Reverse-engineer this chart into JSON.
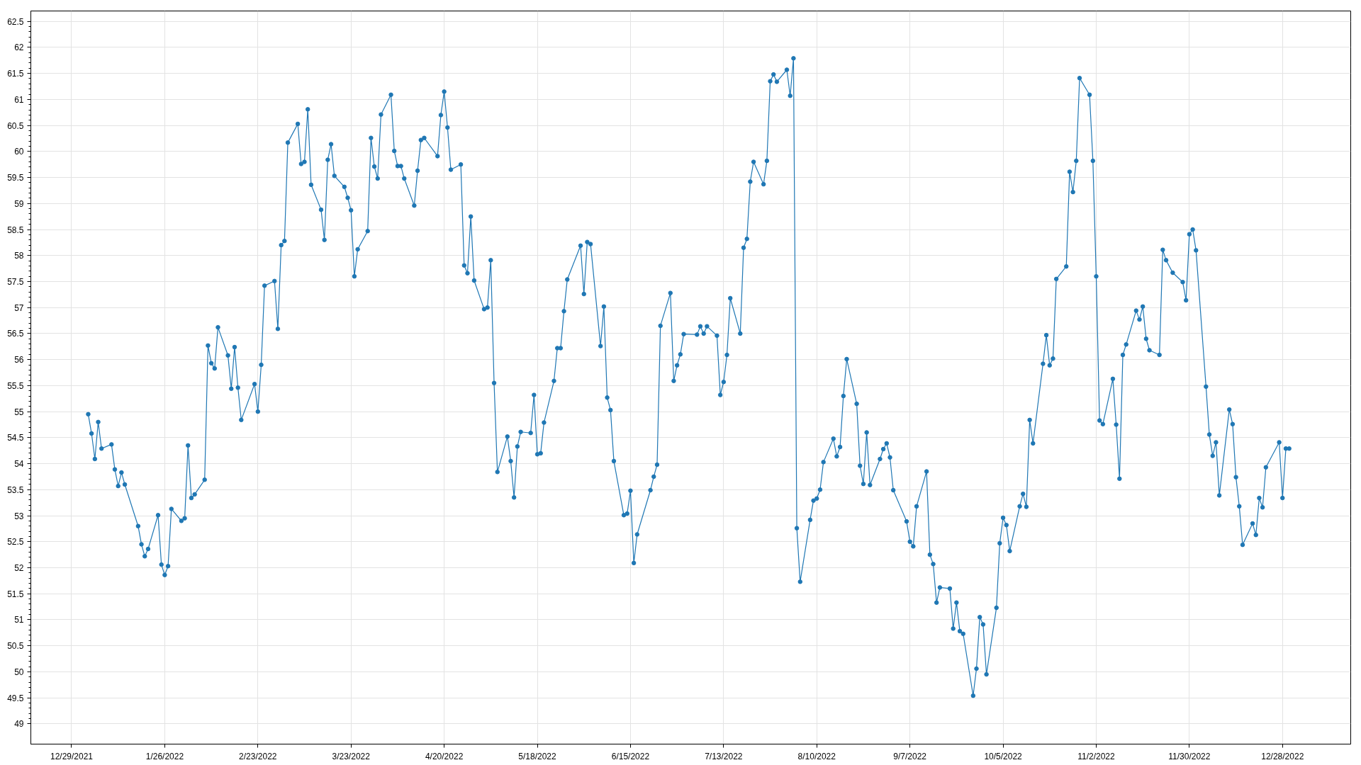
{
  "chart_data": {
    "type": "line",
    "marker": "circle",
    "line_style": "solid",
    "grid": true,
    "xlim": [
      "2021-12-16T18:00",
      "2023-01-17T12:00"
    ],
    "xticks": [
      {
        "value": "2021-12-29",
        "label": "12/29/2021"
      },
      {
        "value": "2022-01-26",
        "label": "1/26/2022"
      },
      {
        "value": "2022-02-23",
        "label": "2/23/2022"
      },
      {
        "value": "2022-03-23",
        "label": "3/23/2022"
      },
      {
        "value": "2022-04-20",
        "label": "4/20/2022"
      },
      {
        "value": "2022-05-18",
        "label": "5/18/2022"
      },
      {
        "value": "2022-06-15",
        "label": "6/15/2022"
      },
      {
        "value": "2022-07-13",
        "label": "7/13/2022"
      },
      {
        "value": "2022-08-10",
        "label": "8/10/2022"
      },
      {
        "value": "2022-09-07",
        "label": "9/7/2022"
      },
      {
        "value": "2022-10-05",
        "label": "10/5/2022"
      },
      {
        "value": "2022-11-02",
        "label": "11/2/2022"
      },
      {
        "value": "2022-11-30",
        "label": "11/30/2022"
      },
      {
        "value": "2022-12-28",
        "label": "12/28/2022"
      }
    ],
    "ylim": [
      48.61,
      62.7
    ],
    "yticks": [
      49,
      49.5,
      50,
      50.5,
      51,
      51.5,
      52,
      52.5,
      53,
      53.5,
      54,
      54.5,
      55,
      55.5,
      56,
      56.5,
      57,
      57.5,
      58,
      58.5,
      59,
      59.5,
      60,
      60.5,
      61,
      61.5,
      62,
      62.5
    ],
    "x": [
      "2022-01-03",
      "2022-01-04",
      "2022-01-05",
      "2022-01-06",
      "2022-01-07",
      "2022-01-10",
      "2022-01-11",
      "2022-01-12",
      "2022-01-13",
      "2022-01-14",
      "2022-01-18",
      "2022-01-19",
      "2022-01-20",
      "2022-01-21",
      "2022-01-24",
      "2022-01-25",
      "2022-01-26",
      "2022-01-27",
      "2022-01-28",
      "2022-01-31",
      "2022-02-01",
      "2022-02-02",
      "2022-02-03",
      "2022-02-04",
      "2022-02-07",
      "2022-02-08",
      "2022-02-09",
      "2022-02-10",
      "2022-02-11",
      "2022-02-14",
      "2022-02-15",
      "2022-02-16",
      "2022-02-17",
      "2022-02-18",
      "2022-02-22",
      "2022-02-23",
      "2022-02-24",
      "2022-02-25",
      "2022-02-28",
      "2022-03-01",
      "2022-03-02",
      "2022-03-03",
      "2022-03-04",
      "2022-03-07",
      "2022-03-08",
      "2022-03-09",
      "2022-03-10",
      "2022-03-11",
      "2022-03-14",
      "2022-03-15",
      "2022-03-16",
      "2022-03-17",
      "2022-03-18",
      "2022-03-21",
      "2022-03-22",
      "2022-03-23",
      "2022-03-24",
      "2022-03-25",
      "2022-03-28",
      "2022-03-29",
      "2022-03-30",
      "2022-03-31",
      "2022-04-01",
      "2022-04-04",
      "2022-04-05",
      "2022-04-06",
      "2022-04-07",
      "2022-04-08",
      "2022-04-11",
      "2022-04-12",
      "2022-04-13",
      "2022-04-14",
      "2022-04-18",
      "2022-04-19",
      "2022-04-20",
      "2022-04-21",
      "2022-04-22",
      "2022-04-25",
      "2022-04-26",
      "2022-04-27",
      "2022-04-28",
      "2022-04-29",
      "2022-05-02",
      "2022-05-03",
      "2022-05-04",
      "2022-05-05",
      "2022-05-06",
      "2022-05-09",
      "2022-05-10",
      "2022-05-11",
      "2022-05-12",
      "2022-05-13",
      "2022-05-16",
      "2022-05-17",
      "2022-05-18",
      "2022-05-19",
      "2022-05-20",
      "2022-05-23",
      "2022-05-24",
      "2022-05-25",
      "2022-05-26",
      "2022-05-27",
      "2022-05-31",
      "2022-06-01",
      "2022-06-02",
      "2022-06-03",
      "2022-06-06",
      "2022-06-07",
      "2022-06-08",
      "2022-06-09",
      "2022-06-10",
      "2022-06-13",
      "2022-06-14",
      "2022-06-15",
      "2022-06-16",
      "2022-06-17",
      "2022-06-21",
      "2022-06-22",
      "2022-06-23",
      "2022-06-24",
      "2022-06-27",
      "2022-06-28",
      "2022-06-29",
      "2022-06-30",
      "2022-07-01",
      "2022-07-05",
      "2022-07-06",
      "2022-07-07",
      "2022-07-08",
      "2022-07-11",
      "2022-07-12",
      "2022-07-13",
      "2022-07-14",
      "2022-07-15",
      "2022-07-18",
      "2022-07-19",
      "2022-07-20",
      "2022-07-21",
      "2022-07-22",
      "2022-07-25",
      "2022-07-26",
      "2022-07-27",
      "2022-07-28",
      "2022-07-29",
      "2022-08-01",
      "2022-08-02",
      "2022-08-03",
      "2022-08-04",
      "2022-08-05",
      "2022-08-08",
      "2022-08-09",
      "2022-08-10",
      "2022-08-11",
      "2022-08-12",
      "2022-08-15",
      "2022-08-16",
      "2022-08-17",
      "2022-08-18",
      "2022-08-19",
      "2022-08-22",
      "2022-08-23",
      "2022-08-24",
      "2022-08-25",
      "2022-08-26",
      "2022-08-29",
      "2022-08-30",
      "2022-08-31",
      "2022-09-01",
      "2022-09-02",
      "2022-09-06",
      "2022-09-07",
      "2022-09-08",
      "2022-09-09",
      "2022-09-12",
      "2022-09-13",
      "2022-09-14",
      "2022-09-15",
      "2022-09-16",
      "2022-09-19",
      "2022-09-20",
      "2022-09-21",
      "2022-09-22",
      "2022-09-23",
      "2022-09-26",
      "2022-09-27",
      "2022-09-28",
      "2022-09-29",
      "2022-09-30",
      "2022-10-03",
      "2022-10-04",
      "2022-10-05",
      "2022-10-06",
      "2022-10-07",
      "2022-10-10",
      "2022-10-11",
      "2022-10-12",
      "2022-10-13",
      "2022-10-14",
      "2022-10-17",
      "2022-10-18",
      "2022-10-19",
      "2022-10-20",
      "2022-10-21",
      "2022-10-24",
      "2022-10-25",
      "2022-10-26",
      "2022-10-27",
      "2022-10-28",
      "2022-10-31",
      "2022-11-01",
      "2022-11-02",
      "2022-11-03",
      "2022-11-04",
      "2022-11-07",
      "2022-11-08",
      "2022-11-09",
      "2022-11-10",
      "2022-11-11",
      "2022-11-14",
      "2022-11-15",
      "2022-11-16",
      "2022-11-17",
      "2022-11-18",
      "2022-11-21",
      "2022-11-22",
      "2022-11-23",
      "2022-11-25",
      "2022-11-28",
      "2022-11-29",
      "2022-11-30",
      "2022-12-01",
      "2022-12-02",
      "2022-12-05",
      "2022-12-06",
      "2022-12-07",
      "2022-12-08",
      "2022-12-09",
      "2022-12-12",
      "2022-12-13",
      "2022-12-14",
      "2022-12-15",
      "2022-12-16",
      "2022-12-19",
      "2022-12-20",
      "2022-12-21",
      "2022-12-22",
      "2022-12-23",
      "2022-12-27",
      "2022-12-28",
      "2022-12-29",
      "2022-12-30"
    ],
    "series": [
      {
        "color": "#1f77b4",
        "values": [
          54.95,
          54.58,
          54.09,
          54.8,
          54.29,
          54.37,
          53.89,
          53.57,
          53.83,
          53.6,
          52.8,
          52.45,
          52.22,
          52.36,
          53.01,
          52.06,
          51.86,
          52.03,
          53.13,
          52.9,
          52.95,
          54.35,
          53.34,
          53.41,
          53.69,
          56.27,
          55.93,
          55.83,
          56.62,
          56.08,
          55.44,
          56.24,
          55.46,
          54.84,
          55.53,
          55.0,
          55.9,
          57.42,
          57.51,
          56.59,
          58.2,
          58.28,
          60.17,
          60.53,
          59.76,
          59.8,
          60.81,
          59.36,
          58.88,
          58.3,
          59.84,
          60.14,
          59.53,
          59.32,
          59.11,
          58.87,
          57.6,
          58.12,
          58.47,
          60.26,
          59.71,
          59.48,
          60.71,
          61.09,
          60.01,
          59.72,
          59.72,
          59.48,
          58.96,
          59.63,
          60.22,
          60.26,
          59.91,
          60.7,
          61.15,
          60.46,
          59.65,
          59.75,
          57.81,
          57.66,
          58.75,
          57.52,
          56.97,
          57.0,
          57.91,
          55.55,
          53.84,
          54.52,
          54.05,
          53.35,
          54.33,
          54.61,
          54.59,
          55.32,
          54.18,
          54.2,
          54.79,
          55.59,
          56.22,
          56.22,
          56.93,
          57.54,
          58.19,
          57.26,
          58.26,
          58.22,
          56.26,
          57.02,
          55.27,
          55.03,
          54.05,
          53.01,
          53.04,
          53.48,
          52.09,
          52.64,
          53.49,
          53.75,
          53.98,
          56.65,
          57.28,
          55.59,
          55.89,
          56.1,
          56.49,
          56.48,
          56.64,
          56.5,
          56.64,
          56.46,
          55.32,
          55.57,
          56.09,
          57.18,
          56.5,
          58.15,
          58.32,
          59.42,
          59.8,
          59.37,
          59.82,
          61.35,
          61.48,
          61.34,
          61.57,
          61.07,
          61.79,
          52.76,
          51.73,
          52.92,
          53.29,
          53.33,
          53.5,
          54.03,
          54.48,
          54.14,
          54.32,
          55.3,
          56.01,
          55.15,
          53.96,
          53.61,
          54.6,
          53.59,
          54.09,
          54.28,
          54.39,
          54.12,
          53.49,
          52.89,
          52.5,
          52.41,
          53.18,
          53.85,
          52.25,
          52.07,
          51.33,
          51.62,
          51.6,
          50.83,
          51.33,
          50.78,
          50.73,
          49.54,
          50.06,
          51.05,
          50.91,
          49.95,
          51.23,
          52.47,
          52.96,
          52.82,
          52.32,
          53.18,
          53.42,
          53.17,
          54.84,
          54.39,
          55.92,
          56.47,
          55.89,
          56.02,
          57.55,
          57.79,
          59.61,
          59.22,
          59.82,
          61.41,
          61.09,
          59.82,
          57.6,
          54.83,
          54.76,
          55.63,
          54.75,
          53.71,
          56.09,
          56.29,
          56.94,
          56.77,
          57.02,
          56.4,
          56.18,
          56.09,
          58.11,
          57.91,
          57.67,
          57.49,
          57.14,
          58.41,
          58.5,
          58.1,
          55.48,
          54.56,
          54.15,
          54.41,
          53.39,
          55.04,
          54.76,
          53.74,
          53.18,
          52.44,
          52.85,
          52.63,
          53.34,
          53.16,
          53.93,
          54.41,
          53.34,
          54.29,
          54.29
        ]
      }
    ]
  }
}
